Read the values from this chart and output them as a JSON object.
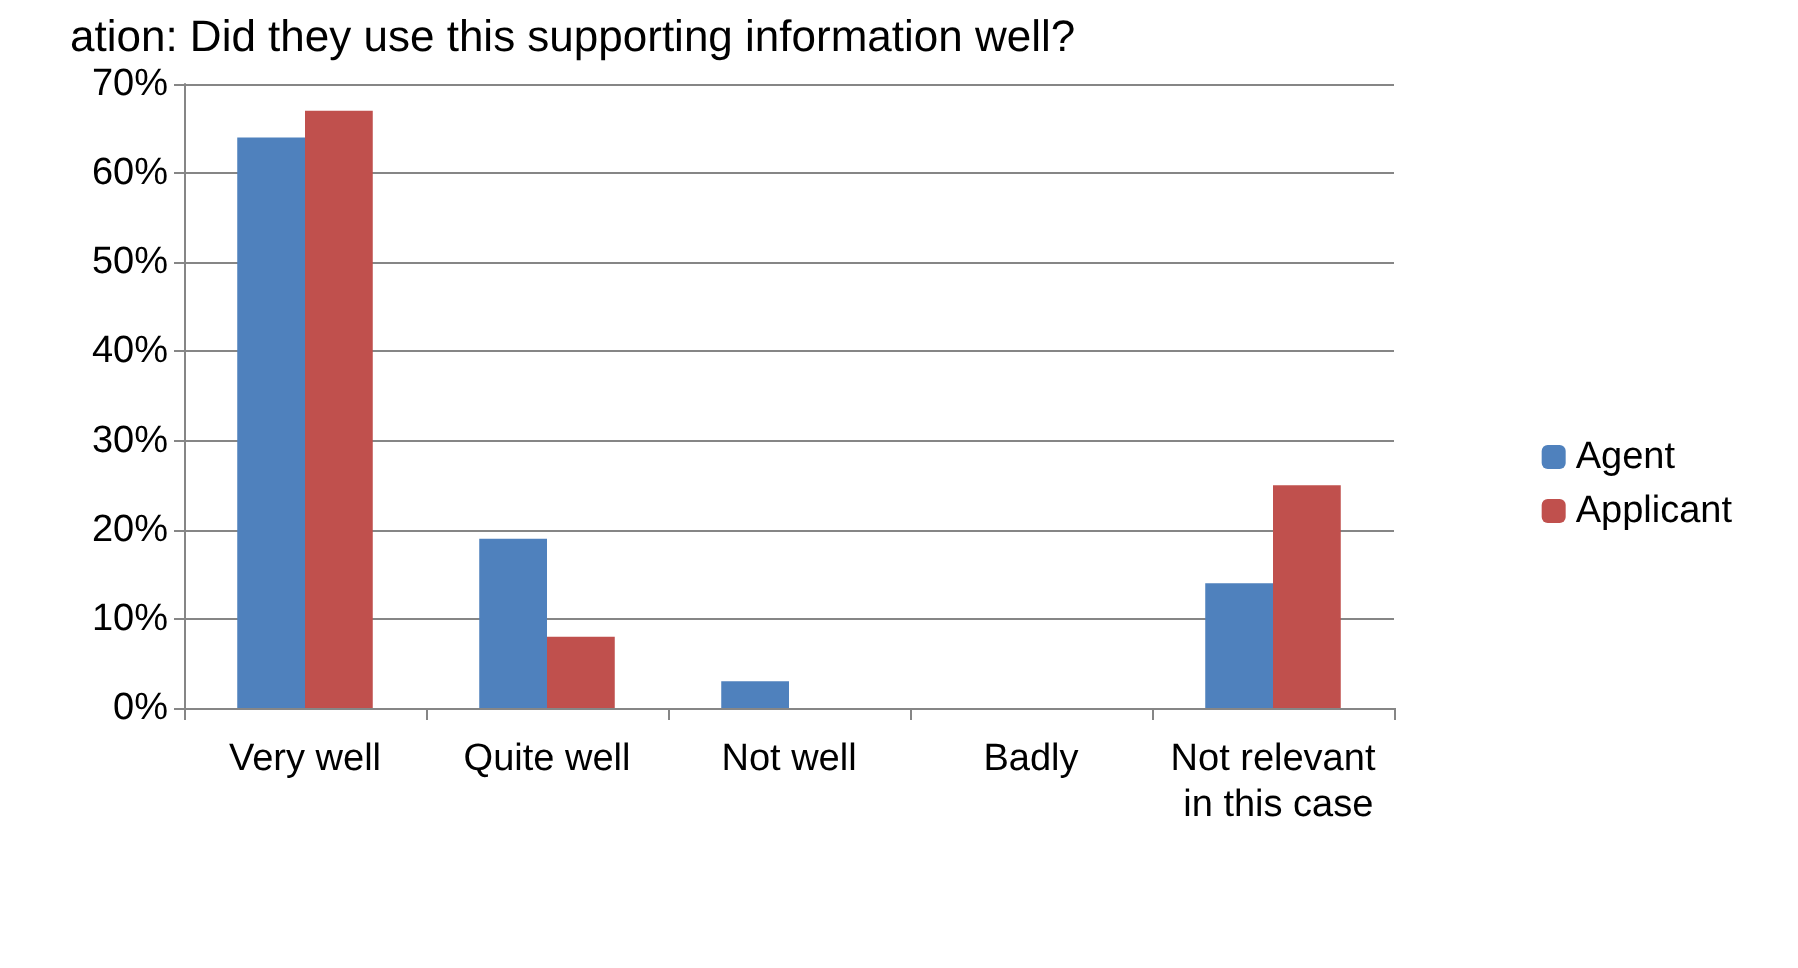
{
  "chart_data": {
    "type": "bar",
    "title": "ation: Did they use this supporting information well?",
    "categories": [
      "Very well",
      "Quite well",
      "Not well",
      "Badly",
      "Not relevant in this case"
    ],
    "series": [
      {
        "name": "Agent",
        "color": "#4f81bd",
        "values": [
          64,
          19,
          3,
          0,
          14
        ]
      },
      {
        "name": "Applicant",
        "color": "#c0504d",
        "values": [
          67,
          8,
          0,
          0,
          25
        ]
      }
    ],
    "ylim": [
      0,
      70
    ],
    "yticks": [
      {
        "value": 0,
        "label": "0%"
      },
      {
        "value": 10,
        "label": "10%"
      },
      {
        "value": 20,
        "label": "20%"
      },
      {
        "value": 30,
        "label": "30%"
      },
      {
        "value": 40,
        "label": "40%"
      },
      {
        "value": 50,
        "label": "50%"
      },
      {
        "value": 60,
        "label": "60%"
      },
      {
        "value": 70,
        "label": "70%"
      }
    ],
    "grid": "y",
    "legend": "right"
  }
}
